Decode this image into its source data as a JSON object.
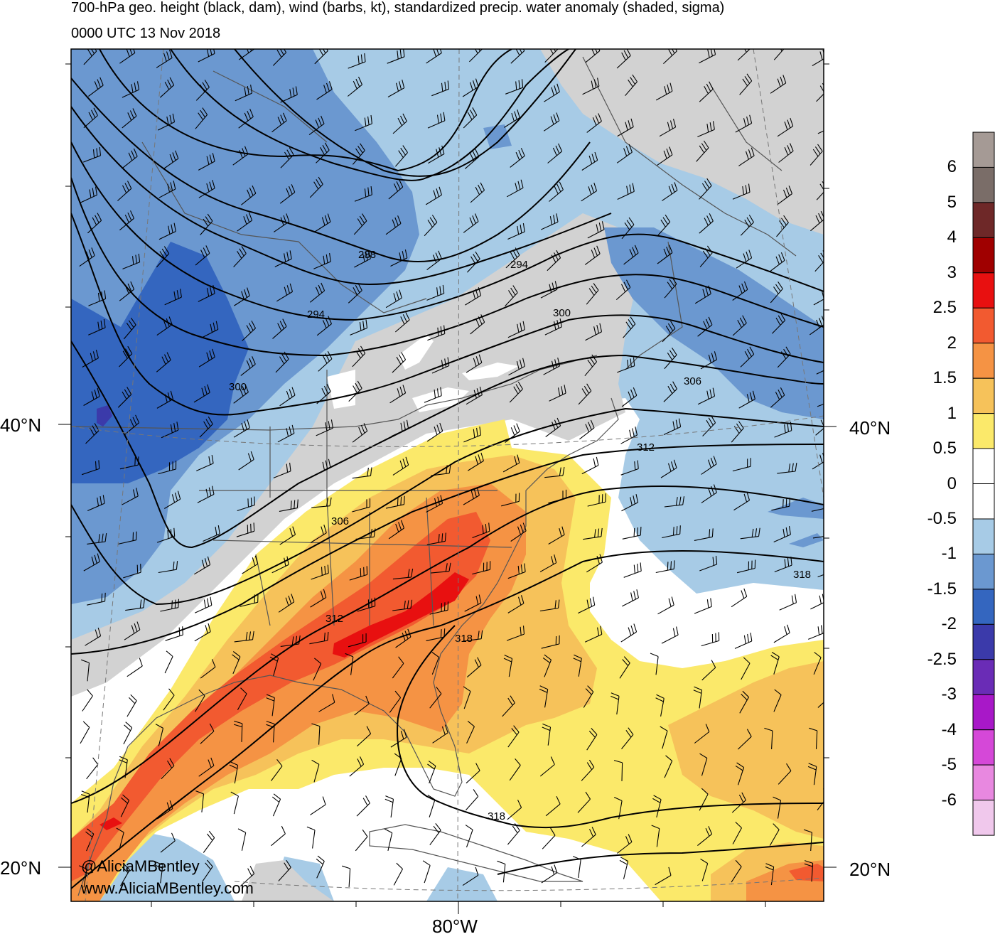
{
  "title": {
    "line1": "700-hPa geo. height (black, dam), wind (barbs, kt), standardized precip. water anomaly (shaded, sigma)",
    "line2": "0000 UTC 13 Nov 2018"
  },
  "axes": {
    "lat_labels": [
      "40°N",
      "20°N"
    ],
    "lon_labels": [
      "80°W"
    ]
  },
  "contour_labels": [
    "288",
    "294",
    "294",
    "300",
    "300",
    "306",
    "306",
    "312",
    "312",
    "318",
    "318",
    "318"
  ],
  "credits": {
    "handle": "@AliciaMBentley",
    "website": "www.AliciaMBentley.com"
  },
  "colorbar": {
    "labels": [
      "6",
      "5",
      "4",
      "3",
      "2.5",
      "2",
      "1.5",
      "1",
      "0.5",
      "0",
      "-0.5",
      "-1",
      "-1.5",
      "-2",
      "-2.5",
      "-3",
      "-4",
      "-5",
      "-6"
    ],
    "colors": [
      "#a59a95",
      "#7a6d68",
      "#6e2828",
      "#a00000",
      "#e81010",
      "#f25a30",
      "#f59344",
      "#f6c25a",
      "#fbe96a",
      "#ffffff",
      "#ffffff",
      "#a7cbe6",
      "#6b98d0",
      "#3466bf",
      "#3b3aaa",
      "#6a2cb6",
      "#a818c8",
      "#d548d8",
      "#e888e0",
      "#f0c8ec"
    ]
  },
  "map_colors": {
    "land_below_normal": "#d2d2d2",
    "sigma_minus_1": "#a7cbe6",
    "sigma_minus_1_5": "#6b98d0",
    "sigma_minus_2": "#3466bf",
    "sigma_0_5": "#fbe96a",
    "sigma_1": "#f6c25a",
    "sigma_1_5": "#f59344",
    "sigma_2": "#f25a30",
    "sigma_2_5": "#e81010"
  }
}
